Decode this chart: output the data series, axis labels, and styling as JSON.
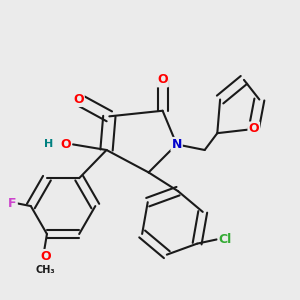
{
  "background_color": "#ebebeb",
  "bond_color": "#1a1a1a",
  "bond_width": 1.5,
  "atom_colors": {
    "O": "#ff0000",
    "O_hydroxy": "#ff0000",
    "N": "#0000cc",
    "F": "#cc44cc",
    "Cl": "#33aa33",
    "H": "#008080",
    "C": "#1a1a1a"
  }
}
